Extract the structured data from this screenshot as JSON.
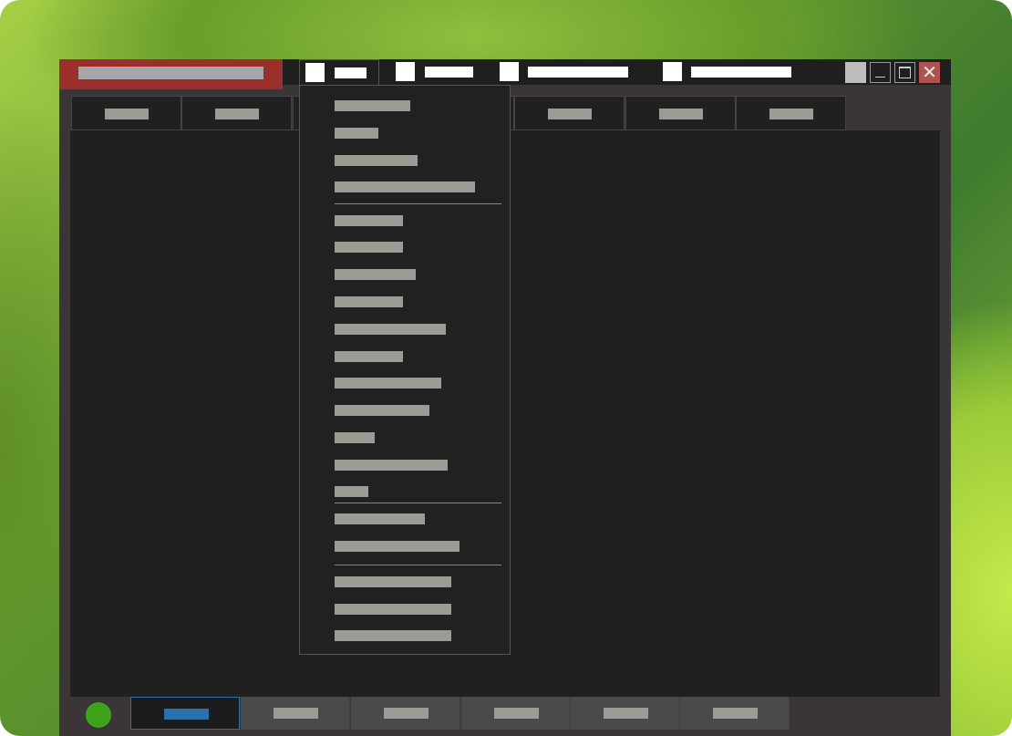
{
  "note_text_redacted": true,
  "window": {
    "title": "",
    "tabs": [
      {
        "label": "",
        "active": true
      },
      {
        "label": ""
      },
      {
        "label": ""
      },
      {
        "label": ""
      }
    ],
    "controls": [
      "app-menu",
      "minimize",
      "maximize",
      "close"
    ]
  },
  "toolbar": {
    "buttons": [
      {
        "label": ""
      },
      {
        "label": ""
      },
      {
        "label": ""
      },
      {
        "label": ""
      },
      {
        "label": ""
      },
      {
        "label": ""
      },
      {
        "label": ""
      }
    ]
  },
  "dropdown_menu": {
    "groups": [
      [
        {
          "label": ""
        },
        {
          "label": ""
        },
        {
          "label": ""
        },
        {
          "label": ""
        }
      ],
      [
        {
          "label": ""
        },
        {
          "label": ""
        },
        {
          "label": ""
        },
        {
          "label": ""
        },
        {
          "label": ""
        },
        {
          "label": ""
        },
        {
          "label": ""
        },
        {
          "label": ""
        },
        {
          "label": ""
        },
        {
          "label": ""
        },
        {
          "label": ""
        }
      ],
      [
        {
          "label": ""
        },
        {
          "label": ""
        }
      ],
      [
        {
          "label": ""
        },
        {
          "label": ""
        },
        {
          "label": ""
        }
      ]
    ]
  },
  "taskbar": {
    "status": "online",
    "tabs": [
      {
        "label": "",
        "active": true
      },
      {
        "label": ""
      },
      {
        "label": ""
      },
      {
        "label": ""
      },
      {
        "label": ""
      },
      {
        "label": ""
      }
    ]
  },
  "colors": {
    "title_accent": "#9b2f2b",
    "close": "#b0524f",
    "status": "#3fa31a",
    "active_tab": "#2d6ea8",
    "text_bar": "#9c9c96"
  }
}
